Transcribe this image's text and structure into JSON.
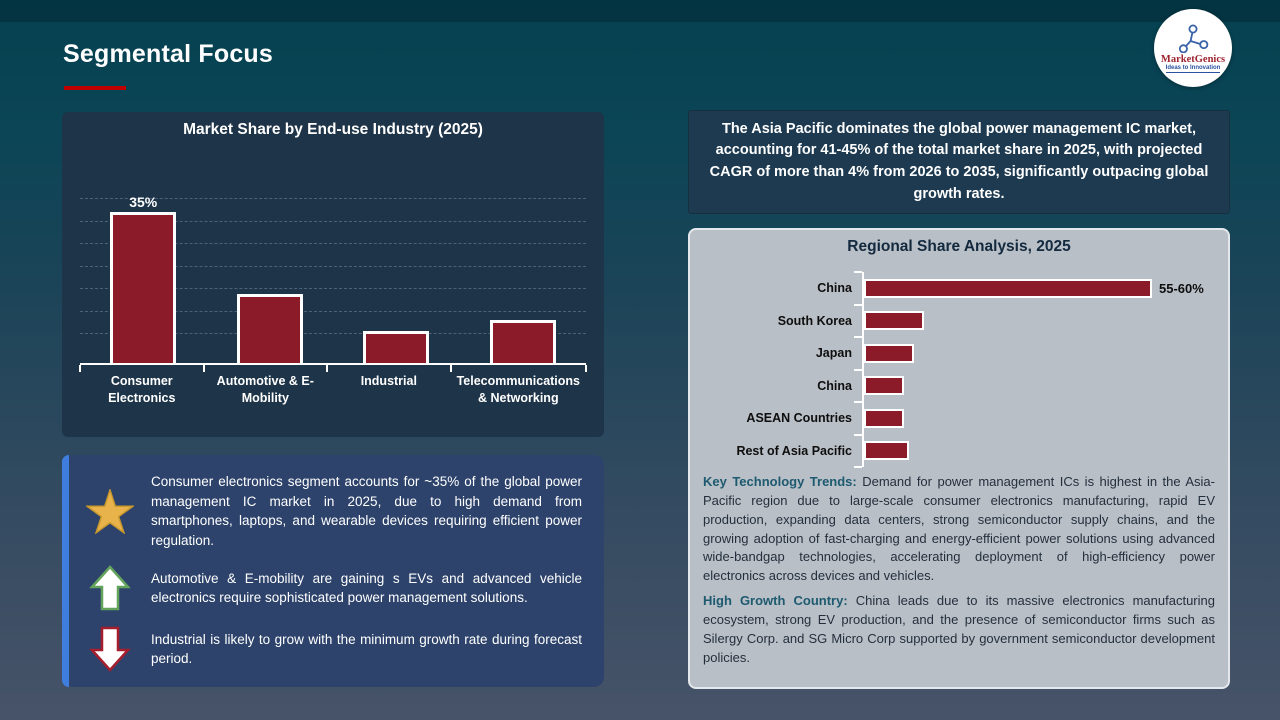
{
  "slide": {
    "title": "Segmental Focus"
  },
  "logo": {
    "brand": "MarketGenics",
    "tagline": "Ideas to Innovation"
  },
  "chart_data": [
    {
      "type": "bar",
      "title": "Market Share by End-use Industry (2025)",
      "categories": [
        "Consumer Electronics",
        "Automotive & E-Mobility",
        "Industrial",
        "Telecommunications & Networking"
      ],
      "values": [
        35,
        16,
        7.5,
        10
      ],
      "data_labels": [
        "35%",
        "",
        "",
        ""
      ],
      "xlabel": "",
      "ylabel": "",
      "ylim": [
        0,
        40
      ],
      "grid": true,
      "legend": false,
      "bar_color": "#8c1b29"
    },
    {
      "type": "bar",
      "orientation": "horizontal",
      "title": "Regional Share Analysis, 2025",
      "categories": [
        "China",
        "South Korea",
        "Japan",
        "China",
        "ASEAN Countries",
        "Rest of Asia Pacific"
      ],
      "values": [
        57.5,
        12,
        10,
        8,
        8,
        9
      ],
      "data_labels": [
        "55-60%",
        "",
        "",
        "",
        "",
        ""
      ],
      "xlim": [
        0,
        62
      ],
      "grid": false,
      "legend": false,
      "bar_color": "#8c1b29"
    }
  ],
  "callout": {
    "text": "The Asia Pacific dominates the global power management IC market, accounting for 41-45% of the total market share in 2025, with projected CAGR of more than 4% from 2026 to 2035, significantly outpacing global growth rates."
  },
  "insights": {
    "items": [
      {
        "icon": "star-icon",
        "text": "Consumer electronics segment accounts for ~35% of the global power management IC market in 2025, due to high demand from smartphones, laptops, and wearable devices requiring efficient power regulation."
      },
      {
        "icon": "up-arrow-icon",
        "text": "Automotive & E-mobility are gaining s EVs and advanced vehicle electronics require sophisticated power management solutions."
      },
      {
        "icon": "down-arrow-icon",
        "text": "Industrial is likely to grow with the minimum growth rate during forecast period."
      }
    ]
  },
  "regional_panel": {
    "paragraphs": [
      {
        "lead": "Key Technology Trends:",
        "text": " Demand for power management ICs is highest in the Asia-Pacific region due to large-scale consumer electronics manufacturing, rapid EV production, expanding data centers, strong semiconductor supply chains, and the growing adoption of fast-charging and energy-efficient power solutions using advanced wide-bandgap technologies, accelerating deployment of high-efficiency power electronics across devices and vehicles."
      },
      {
        "lead": "High Growth Country:",
        "text": " China leads due to its massive electronics manufacturing ecosystem, strong EV production, and the presence of semiconductor firms such as Silergy Corp. and SG Micro Corp supported by government semiconductor development policies."
      }
    ]
  },
  "colors": {
    "accent_red": "#c00000",
    "bar_red": "#8c1b29",
    "panel_navy": "#1e3448",
    "callout_navy": "#1d3a50",
    "insight_blue": "#2d436b",
    "accent_blue": "#3f7ede",
    "gray_panel": "#b9bfc6",
    "teal_lead": "#1d5a70",
    "star_gold": "#e8b34b"
  }
}
